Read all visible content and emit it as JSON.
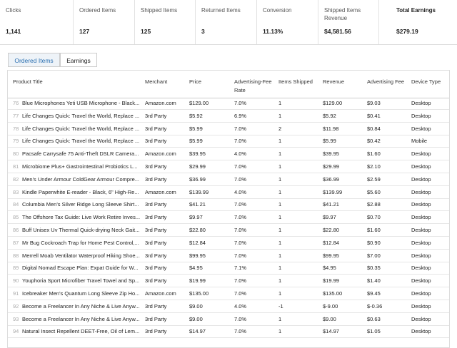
{
  "summary": [
    {
      "label": "Clicks",
      "value": "1,141"
    },
    {
      "label": "Ordered Items",
      "value": "127"
    },
    {
      "label": "Shipped Items",
      "value": "125"
    },
    {
      "label": "Returned Items",
      "value": "3"
    },
    {
      "label": "Conversion",
      "value": "11.13%"
    },
    {
      "label": "Shipped Items Revenue",
      "value": "$4,581.56"
    },
    {
      "label": "Total Earnings",
      "value": "$279.19"
    }
  ],
  "tabs": [
    "Ordered Items",
    "Earnings"
  ],
  "table": {
    "headers": [
      "Product Title",
      "Merchant",
      "Price",
      "Advertising-Fee Rate",
      "Items Shipped",
      "Revenue",
      "Advertising Fee",
      "Device Type"
    ],
    "rows": [
      [
        "76",
        "Blue Microphones Yeti USB Microphone - Black...",
        "Amazon.com",
        "$129.00",
        "7.0%",
        "1",
        "$129.00",
        "$9.03",
        "Desktop"
      ],
      [
        "77",
        "Life Changes Quick: Travel the World, Replace ...",
        "3rd Party",
        "$5.92",
        "6.9%",
        "1",
        "$5.92",
        "$0.41",
        "Desktop"
      ],
      [
        "78",
        "Life Changes Quick: Travel the World, Replace ...",
        "3rd Party",
        "$5.99",
        "7.0%",
        "2",
        "$11.98",
        "$0.84",
        "Desktop"
      ],
      [
        "79",
        "Life Changes Quick: Travel the World, Replace ...",
        "3rd Party",
        "$5.99",
        "7.0%",
        "1",
        "$5.99",
        "$0.42",
        "Mobile"
      ],
      [
        "80",
        "Pacsafe Carrysafe 75 Anti-Theft DSLR Camera...",
        "Amazon.com",
        "$39.95",
        "4.0%",
        "1",
        "$39.95",
        "$1.60",
        "Desktop"
      ],
      [
        "81",
        "Microbiome Plus+ Gastrointestinal Probiotics L...",
        "3rd Party",
        "$29.99",
        "7.0%",
        "1",
        "$29.99",
        "$2.10",
        "Desktop"
      ],
      [
        "82",
        "Men's Under Armour ColdGear Armour Compre...",
        "3rd Party",
        "$36.99",
        "7.0%",
        "1",
        "$36.99",
        "$2.59",
        "Desktop"
      ],
      [
        "83",
        "Kindle Paperwhite E-reader - Black, 6\" High-Re...",
        "Amazon.com",
        "$139.99",
        "4.0%",
        "1",
        "$139.99",
        "$5.60",
        "Desktop"
      ],
      [
        "84",
        "Columbia Men's Silver Ridge Long Sleeve Shirt...",
        "3rd Party",
        "$41.21",
        "7.0%",
        "1",
        "$41.21",
        "$2.88",
        "Desktop"
      ],
      [
        "85",
        "The Offshore Tax Guide: Live Work Retire Inves...",
        "3rd Party",
        "$9.97",
        "7.0%",
        "1",
        "$9.97",
        "$0.70",
        "Desktop"
      ],
      [
        "86",
        "Buff Unisex Uv Thermal Quick-drying Neck Gait...",
        "3rd Party",
        "$22.80",
        "7.0%",
        "1",
        "$22.80",
        "$1.60",
        "Desktop"
      ],
      [
        "87",
        "Mr Bug Cockroach Trap for Home Pest Control,...",
        "3rd Party",
        "$12.84",
        "7.0%",
        "1",
        "$12.84",
        "$0.90",
        "Desktop"
      ],
      [
        "88",
        "Merrell Moab Ventilator Waterproof Hiking Shoe...",
        "3rd Party",
        "$99.95",
        "7.0%",
        "1",
        "$99.95",
        "$7.00",
        "Desktop"
      ],
      [
        "89",
        "Digital Nomad Escape Plan: Expat Guide for W...",
        "3rd Party",
        "$4.95",
        "7.1%",
        "1",
        "$4.95",
        "$0.35",
        "Desktop"
      ],
      [
        "90",
        "Youphoria Sport Microfiber Travel Towel and Sp...",
        "3rd Party",
        "$19.99",
        "7.0%",
        "1",
        "$19.99",
        "$1.40",
        "Desktop"
      ],
      [
        "91",
        "Icebreaker Men's Quantum Long Sleeve Zip Ho...",
        "Amazon.com",
        "$135.00",
        "7.0%",
        "1",
        "$135.00",
        "$9.45",
        "Desktop"
      ],
      [
        "92",
        "Become a Freelancer In Any Niche & Live Anyw...",
        "3rd Party",
        "$9.00",
        "4.0%",
        "-1",
        "$-9.00",
        "$-0.36",
        "Desktop"
      ],
      [
        "93",
        "Become a Freelancer In Any Niche & Live Anyw...",
        "3rd Party",
        "$9.00",
        "7.0%",
        "1",
        "$9.00",
        "$0.63",
        "Desktop"
      ],
      [
        "94",
        "Natural Insect Repellent DEET-Free, Oil of Lem...",
        "3rd Party",
        "$14.97",
        "7.0%",
        "1",
        "$14.97",
        "$1.05",
        "Desktop"
      ]
    ]
  }
}
